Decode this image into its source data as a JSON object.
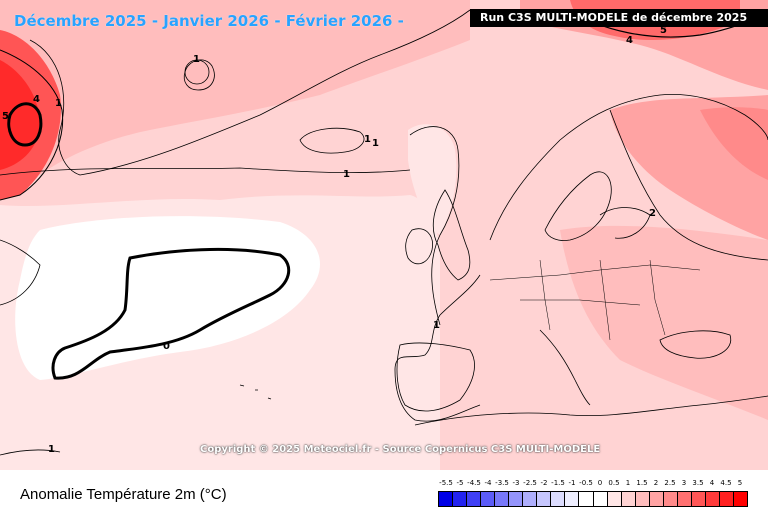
{
  "header": {
    "title": "Décembre 2025 - Janvier 2026 - Février 2026 -",
    "run_label": "Run C3S MULTI-MODELE de décembre 2025"
  },
  "map": {
    "copyright": "Copyright © 2025 Meteociel.fr - Source Copernicus C3S MULTI-MODELE",
    "contour_labels": [
      "5",
      "4",
      "1",
      "1",
      "1",
      "1",
      "1",
      "1",
      "0",
      "1",
      "2",
      "4",
      "5"
    ],
    "colors": {
      "land_line": "#000000",
      "anomaly_0_0.5": "#ffffff",
      "anomaly_0.5_1": "#ffe6e6",
      "anomaly_1_1.5": "#ffd3d3",
      "anomaly_1.5_2": "#ffbdbd",
      "anomaly_2_2.5": "#ffa3a3",
      "anomaly_2.5_3": "#ff8a8a",
      "anomaly_3+": "#ff3b3b"
    }
  },
  "legend": {
    "title": "Anomalie Température 2m (°C)",
    "ticks": [
      "-5.5",
      "-5",
      "-4.5",
      "-4",
      "-3.5",
      "-3",
      "-2.5",
      "-2",
      "-1.5",
      "-1",
      "-0.5",
      "0",
      "0.5",
      "1",
      "1.5",
      "2",
      "2.5",
      "3",
      "3.5",
      "4",
      "4.5",
      "5"
    ],
    "colors": [
      "#0000e6",
      "#2323f0",
      "#4040f5",
      "#5c5cf8",
      "#7878fa",
      "#9494fb",
      "#aeaefc",
      "#c6c6fd",
      "#dcdcfe",
      "#eeeeff",
      "#ffffff",
      "#ffffff",
      "#ffe6e6",
      "#ffd3d3",
      "#ffbdbd",
      "#ffa3a3",
      "#ff8a8a",
      "#ff7070",
      "#ff5656",
      "#ff3b3b",
      "#ff2020",
      "#ff0000"
    ]
  }
}
